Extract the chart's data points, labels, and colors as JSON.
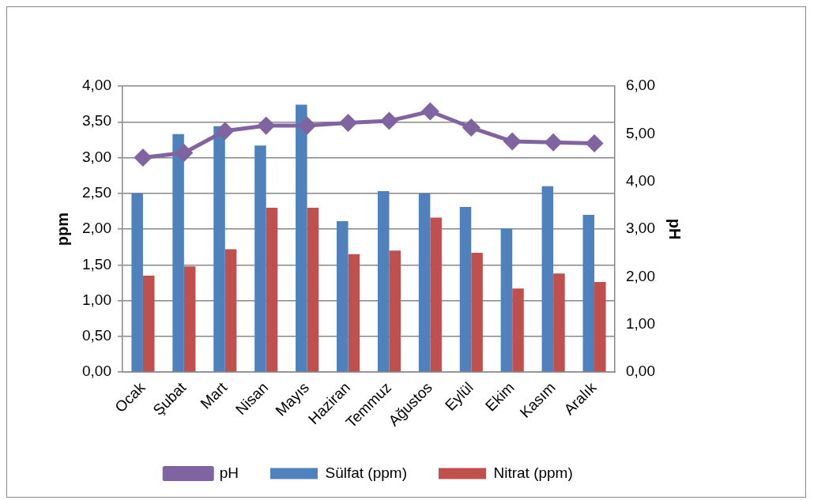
{
  "chart_data": {
    "type": "bar",
    "xlabel": null,
    "ylabel": "ppm",
    "y2label": "pH",
    "categories": [
      "Ocak",
      "Şubat",
      "Mart",
      "Nisan",
      "Mayıs",
      "Haziran",
      "Temmuz",
      "Ağustos",
      "Eylül",
      "Ekim",
      "Kasım",
      "Aralık"
    ],
    "series": [
      {
        "name": "Sülfat (ppm)",
        "color": "#4f81bd",
        "values": [
          2.5,
          3.33,
          3.44,
          3.17,
          3.74,
          2.11,
          2.53,
          2.5,
          2.31,
          2.01,
          2.6,
          2.2
        ]
      },
      {
        "name": "Nitrat (ppm)",
        "color": "#c0504d",
        "values": [
          1.35,
          1.48,
          1.72,
          2.3,
          2.3,
          1.65,
          1.7,
          2.16,
          1.67,
          1.17,
          1.38,
          1.26
        ]
      },
      {
        "name": "pH",
        "type": "line",
        "axis": "y2",
        "color": "#8064a2",
        "values": [
          4.5,
          4.6,
          5.06,
          5.17,
          5.17,
          5.23,
          5.27,
          5.47,
          5.13,
          4.84,
          4.82,
          4.8
        ]
      }
    ],
    "ylim": [
      0,
      4
    ],
    "yticks": [
      {
        "value": 0,
        "label": "0,00"
      },
      {
        "value": 0.5,
        "label": "0,50"
      },
      {
        "value": 1,
        "label": "1,00"
      },
      {
        "value": 1.5,
        "label": "1,50"
      },
      {
        "value": 2,
        "label": "2,00"
      },
      {
        "value": 2.5,
        "label": "2,50"
      },
      {
        "value": 3,
        "label": "3,00"
      },
      {
        "value": 3.5,
        "label": "3,50"
      },
      {
        "value": 4,
        "label": "4,00"
      }
    ],
    "y2lim": [
      0,
      6
    ],
    "y2ticks": [
      {
        "value": 0,
        "label": "0,00"
      },
      {
        "value": 1,
        "label": "1,00"
      },
      {
        "value": 2,
        "label": "2,00"
      },
      {
        "value": 3,
        "label": "3,00"
      },
      {
        "value": 4,
        "label": "4,00"
      },
      {
        "value": 5,
        "label": "5,00"
      },
      {
        "value": 6,
        "label": "6,00"
      }
    ],
    "grid": "y",
    "legend": "bottom",
    "marker": "diamond",
    "line_style": "solid"
  }
}
